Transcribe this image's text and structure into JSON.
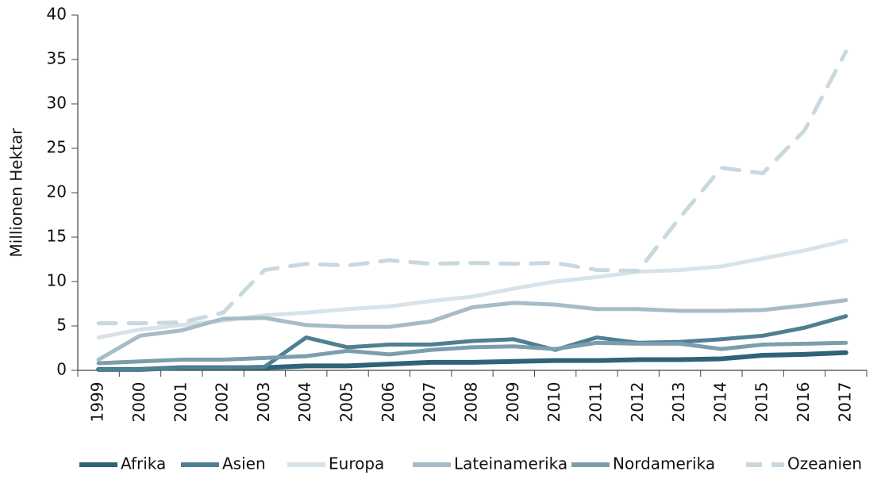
{
  "chart_data": {
    "type": "line",
    "y_label": "Millionen Hektar",
    "categories": [
      "1999",
      "2000",
      "2001",
      "2002",
      "2003",
      "2004",
      "2005",
      "2006",
      "2007",
      "2008",
      "2009",
      "2010",
      "2011",
      "2012",
      "2013",
      "2014",
      "2015",
      "2016",
      "2017"
    ],
    "ylim": [
      0,
      40
    ],
    "yticks": [
      0,
      5,
      10,
      15,
      20,
      25,
      30,
      35,
      40
    ],
    "series": [
      {
        "name": "Afrika",
        "color": "#2e6378",
        "values": [
          0.1,
          0.1,
          0.3,
          0.3,
          0.3,
          0.5,
          0.5,
          0.7,
          0.9,
          0.9,
          1.0,
          1.1,
          1.1,
          1.2,
          1.2,
          1.3,
          1.7,
          1.8,
          2.0
        ]
      },
      {
        "name": "Asien",
        "color": "#4f7f92",
        "values": [
          0.1,
          0.1,
          0.3,
          0.3,
          0.4,
          3.7,
          2.6,
          2.9,
          2.9,
          3.3,
          3.5,
          2.3,
          3.7,
          3.1,
          3.2,
          3.5,
          3.9,
          4.8,
          6.1
        ]
      },
      {
        "name": "Europa",
        "color": "#d7e3e8",
        "values": [
          3.7,
          4.6,
          5.1,
          5.6,
          6.2,
          6.5,
          6.9,
          7.2,
          7.8,
          8.3,
          9.2,
          10.0,
          10.5,
          11.1,
          11.3,
          11.7,
          12.6,
          13.5,
          14.6
        ]
      },
      {
        "name": "Lateinamerika",
        "color": "#a6bcc6",
        "values": [
          1.2,
          3.9,
          4.5,
          5.8,
          5.9,
          5.1,
          4.9,
          4.9,
          5.5,
          7.1,
          7.6,
          7.4,
          6.9,
          6.9,
          6.7,
          6.7,
          6.8,
          7.3,
          7.9
        ]
      },
      {
        "name": "Nordamerika",
        "color": "#7b9eac",
        "values": [
          0.8,
          1.0,
          1.2,
          1.2,
          1.4,
          1.6,
          2.2,
          1.8,
          2.3,
          2.6,
          2.7,
          2.4,
          3.1,
          3.0,
          3.0,
          2.4,
          2.9,
          3.0,
          3.1
        ]
      },
      {
        "name": "Ozeanien",
        "color": "#c9d8de",
        "dashed": true,
        "values": [
          5.3,
          5.3,
          5.4,
          6.5,
          11.3,
          12.0,
          11.8,
          12.4,
          12.0,
          12.1,
          12.0,
          12.1,
          11.3,
          11.2,
          17.2,
          22.8,
          22.2,
          27.0,
          35.9
        ]
      }
    ]
  }
}
